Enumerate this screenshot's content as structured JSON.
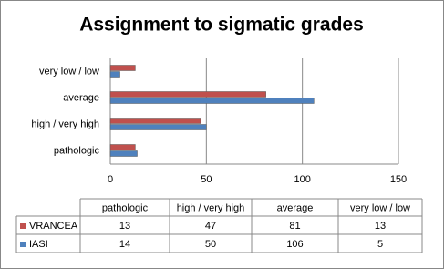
{
  "chart_data": {
    "type": "bar",
    "orientation": "horizontal",
    "title": "Assignment to sigmatic grades",
    "categories": [
      "pathologic",
      "high / very high",
      "average",
      "very low / low"
    ],
    "series": [
      {
        "name": "VRANCEA",
        "color": "#c0504d",
        "values": [
          13,
          47,
          81,
          13
        ]
      },
      {
        "name": "IASI",
        "color": "#4f81bd",
        "values": [
          14,
          50,
          106,
          5
        ]
      }
    ],
    "xlim": [
      0,
      150
    ],
    "xticks": [
      0,
      50,
      100,
      150
    ],
    "grid": true
  }
}
